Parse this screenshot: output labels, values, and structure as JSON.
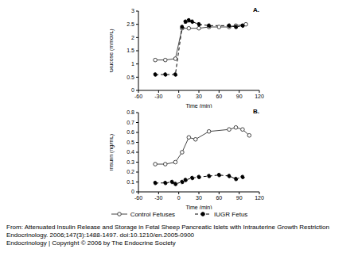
{
  "chart_data": [
    {
      "type": "line",
      "title": "A.",
      "x_label": "Time (min)",
      "y_label": "Glucose (mmol/L)",
      "xlim": [
        -60,
        120
      ],
      "xticks": [
        -60,
        -30,
        0,
        30,
        60,
        90,
        120
      ],
      "ylim": [
        0,
        3
      ],
      "yticks": [
        0,
        0.5,
        1,
        1.5,
        2,
        2.5,
        3
      ],
      "series": [
        {
          "name": "Control Fetuses",
          "color": "#444444",
          "marker": "open circle",
          "line_style": "solid",
          "x": [
            -35,
            -20,
            -5,
            5,
            15,
            30,
            45,
            60,
            75,
            85,
            100
          ],
          "values": [
            1.15,
            1.15,
            1.2,
            2.35,
            2.35,
            2.35,
            2.4,
            2.4,
            2.4,
            2.45,
            2.5
          ]
        },
        {
          "name": "IUGR Fetus",
          "color": "#000000",
          "marker": "filled circle",
          "line_style": "dashed",
          "x": [
            -35,
            -20,
            -5,
            5,
            10,
            15,
            20,
            30,
            45,
            75,
            85,
            95
          ],
          "values": [
            0.6,
            0.6,
            0.6,
            2.4,
            2.6,
            2.65,
            2.6,
            2.5,
            2.45,
            2.45,
            2.4,
            2.45
          ]
        }
      ]
    },
    {
      "type": "line",
      "title": "B.",
      "x_label": "Time (min)",
      "y_label": "Insulin (ng/mL)",
      "xlim": [
        -60,
        120
      ],
      "xticks": [
        -60,
        -30,
        0,
        30,
        60,
        90,
        120
      ],
      "ylim": [
        0,
        0.8
      ],
      "yticks": [
        0,
        0.1,
        0.2,
        0.3,
        0.4,
        0.5,
        0.6,
        0.7,
        0.8
      ],
      "legend": "bottom",
      "series": [
        {
          "name": "Control Fetuses",
          "color": "#444444",
          "marker": "open circle",
          "line_style": "solid",
          "x": [
            -35,
            -20,
            -5,
            5,
            15,
            25,
            45,
            75,
            85,
            95,
            105
          ],
          "values": [
            0.28,
            0.28,
            0.3,
            0.4,
            0.55,
            0.53,
            0.61,
            0.63,
            0.65,
            0.63,
            0.57
          ]
        },
        {
          "name": "IUGR Fetus",
          "color": "#000000",
          "marker": "filled circle",
          "line_style": "dashed",
          "x": [
            -35,
            -20,
            -10,
            -5,
            5,
            10,
            20,
            30,
            45,
            60,
            75,
            85,
            95
          ],
          "values": [
            0.09,
            0.09,
            0.1,
            0.08,
            0.1,
            0.12,
            0.14,
            0.15,
            0.16,
            0.17,
            0.16,
            0.13,
            0.15
          ]
        }
      ]
    }
  ],
  "caption": [
    "From: Attenuated Insulin Release and Storage in Fetal Sheep Pancreatic Islets with Intrauterine Growth Restriction",
    "Endocrinology. 2006;147(3):1488-1497. doi:10.1210/en.2005-0900",
    "Endocrinology | Copyright © 2006 by The Endocrine Society"
  ]
}
